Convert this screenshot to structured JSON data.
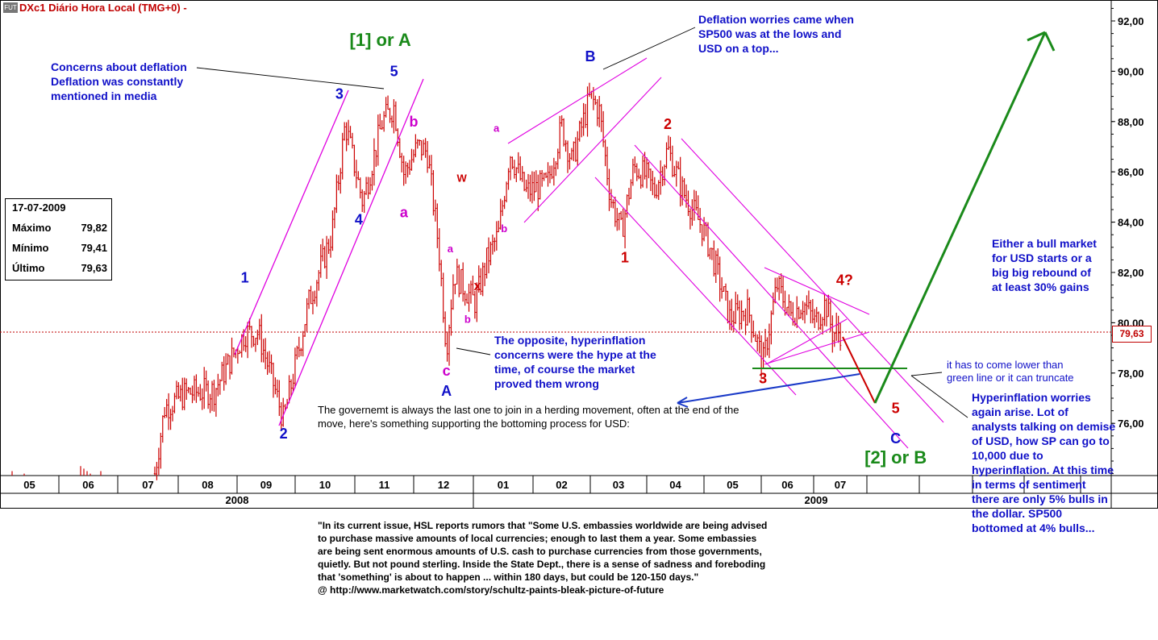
{
  "title": "DXc1  Diário  Hora Local (TMG+0)",
  "title_suffix": "-",
  "title_icon": "FUT",
  "info_box": {
    "date": "17-07-2009",
    "rows": [
      {
        "label": "Máximo",
        "value": "79,82"
      },
      {
        "label": "Mínimo",
        "value": "79,41"
      },
      {
        "label": "Último",
        "value": "79,63"
      }
    ]
  },
  "last_price_label": "79,63",
  "colors": {
    "candle": "#cc0000",
    "channel": "#e000e0",
    "wave_blue": "#1010c8",
    "wave_red": "#cc0000",
    "wave_magenta": "#cc00cc",
    "wave_green": "#1a8a1a",
    "green_arrow": "#1a8a1a",
    "blue_arrow": "#1a3ac8",
    "last_price_line": "#c00000"
  },
  "chart_data": {
    "type": "candlestick",
    "instrument": "DXc1",
    "y_axis": {
      "min": 74,
      "max": 93,
      "ticks": [
        "92,00",
        "90,00",
        "88,00",
        "86,00",
        "84,00",
        "82,00",
        "80,00",
        "78,00",
        "76,00"
      ],
      "position": "right"
    },
    "x_axis": {
      "month_ticks": [
        "05",
        "06",
        "07",
        "08",
        "09",
        "10",
        "11",
        "12",
        "01",
        "02",
        "03",
        "04",
        "05",
        "06",
        "07"
      ],
      "year_labels": [
        "2008",
        "2009"
      ]
    },
    "last_price": 79.63,
    "price_path": [
      {
        "t": "2008-07-20",
        "v": 74.0
      },
      {
        "t": "2008-07-25",
        "v": 76.6
      },
      {
        "t": "2008-08-05",
        "v": 77.2
      },
      {
        "t": "2008-08-20",
        "v": 77.3
      },
      {
        "t": "2008-09-05",
        "v": 79.6
      },
      {
        "t": "2008-09-12",
        "v": 79.6
      },
      {
        "t": "2008-09-20",
        "v": 77.5
      },
      {
        "t": "2008-09-25",
        "v": 76.1
      },
      {
        "t": "2008-10-08",
        "v": 80.8
      },
      {
        "t": "2008-10-20",
        "v": 83.5
      },
      {
        "t": "2008-10-27",
        "v": 87.9
      },
      {
        "t": "2008-11-05",
        "v": 84.8
      },
      {
        "t": "2008-11-15",
        "v": 88.0
      },
      {
        "t": "2008-11-21",
        "v": 88.6
      },
      {
        "t": "2008-11-26",
        "v": 85.9
      },
      {
        "t": "2008-12-03",
        "v": 87.0
      },
      {
        "t": "2008-12-08",
        "v": 86.8
      },
      {
        "t": "2008-12-14",
        "v": 83.0
      },
      {
        "t": "2008-12-18",
        "v": 79.0
      },
      {
        "t": "2008-12-22",
        "v": 82.0
      },
      {
        "t": "2008-12-27",
        "v": 81.4
      },
      {
        "t": "2009-01-02",
        "v": 80.8
      },
      {
        "t": "2009-01-08",
        "v": 82.5
      },
      {
        "t": "2009-01-14",
        "v": 83.5
      },
      {
        "t": "2009-01-20",
        "v": 86.8
      },
      {
        "t": "2009-01-28",
        "v": 85.2
      },
      {
        "t": "2009-02-08",
        "v": 85.5
      },
      {
        "t": "2009-02-15",
        "v": 87.8
      },
      {
        "t": "2009-02-20",
        "v": 86.4
      },
      {
        "t": "2009-03-01",
        "v": 89.0
      },
      {
        "t": "2009-03-06",
        "v": 88.4
      },
      {
        "t": "2009-03-12",
        "v": 85.0
      },
      {
        "t": "2009-03-18",
        "v": 83.6
      },
      {
        "t": "2009-03-25",
        "v": 86.2
      },
      {
        "t": "2009-04-01",
        "v": 85.8
      },
      {
        "t": "2009-04-05",
        "v": 85.2
      },
      {
        "t": "2009-04-12",
        "v": 86.9
      },
      {
        "t": "2009-04-20",
        "v": 85.2
      },
      {
        "t": "2009-04-30",
        "v": 83.8
      },
      {
        "t": "2009-05-05",
        "v": 82.8
      },
      {
        "t": "2009-05-15",
        "v": 80.2
      },
      {
        "t": "2009-05-25",
        "v": 80.5
      },
      {
        "t": "2009-06-02",
        "v": 78.4
      },
      {
        "t": "2009-06-10",
        "v": 81.5
      },
      {
        "t": "2009-06-18",
        "v": 80.3
      },
      {
        "t": "2009-06-25",
        "v": 80.8
      },
      {
        "t": "2009-07-02",
        "v": 80.0
      },
      {
        "t": "2009-07-08",
        "v": 80.8
      },
      {
        "t": "2009-07-12",
        "v": 79.6
      },
      {
        "t": "2009-07-17",
        "v": 79.63
      }
    ],
    "wave_labels": [
      {
        "text": "1",
        "t": "2008-09-05",
        "v": 81.6,
        "color": "wave_blue"
      },
      {
        "text": "2",
        "t": "2008-09-25",
        "v": 75.4,
        "color": "wave_blue"
      },
      {
        "text": "3",
        "t": "2008-10-24",
        "v": 88.9,
        "color": "wave_blue"
      },
      {
        "text": "4",
        "t": "2008-11-03",
        "v": 83.9,
        "color": "wave_blue"
      },
      {
        "text": "5",
        "t": "2008-11-21",
        "v": 89.8,
        "color": "wave_blue"
      },
      {
        "text": "b",
        "t": "2008-12-01",
        "v": 87.8,
        "color": "wave_magenta"
      },
      {
        "text": "a",
        "t": "2008-11-26",
        "v": 84.2,
        "color": "wave_magenta"
      },
      {
        "text": "W",
        "t": "2008-12-26",
        "v": 85.6,
        "color": "wave_red",
        "small": true
      },
      {
        "text": "a",
        "t": "2008-12-20",
        "v": 82.8,
        "color": "wave_magenta",
        "small": true
      },
      {
        "text": "X",
        "t": "2009-01-03",
        "v": 81.3,
        "color": "wave_red",
        "small": true
      },
      {
        "text": "b",
        "t": "2008-12-29",
        "v": 80.0,
        "color": "wave_magenta",
        "small": true
      },
      {
        "text": "c",
        "t": "2008-12-18",
        "v": 77.9,
        "color": "wave_magenta"
      },
      {
        "text": "A",
        "t": "2008-12-18",
        "v": 77.1,
        "color": "wave_blue"
      },
      {
        "text": "a",
        "t": "2009-01-13",
        "v": 87.6,
        "color": "wave_magenta",
        "small": true
      },
      {
        "text": "b",
        "t": "2009-01-17",
        "v": 83.6,
        "color": "wave_magenta",
        "small": true
      },
      {
        "text": "B",
        "t": "2009-03-01",
        "v": 90.4,
        "color": "wave_blue"
      },
      {
        "text": "1",
        "t": "2009-03-20",
        "v": 82.4,
        "color": "wave_red"
      },
      {
        "text": "2",
        "t": "2009-04-12",
        "v": 87.7,
        "color": "wave_red"
      },
      {
        "text": "3",
        "t": "2009-06-02",
        "v": 77.6,
        "color": "wave_red"
      },
      {
        "text": "4?",
        "t": "2009-07-19",
        "v": 81.5,
        "color": "wave_red"
      },
      {
        "text": "5",
        "t": "2009-08-18",
        "v": 76.4,
        "color": "wave_red"
      },
      {
        "text": "C",
        "t": "2009-08-18",
        "v": 75.2,
        "color": "wave_blue"
      },
      {
        "text": "[1] or A",
        "t": "2008-11-14",
        "v": 91.0,
        "color": "wave_green",
        "big": true
      },
      {
        "text": "[2] or B",
        "t": "2009-08-18",
        "v": 74.4,
        "color": "wave_green",
        "big": true
      }
    ]
  },
  "annotations": {
    "deflation_concerns": [
      "Concerns about deflation",
      "Deflation was constantly",
      "mentioned in media"
    ],
    "deflation_worries": [
      "Deflation worries came when",
      "SP500 was at the lows and",
      "USD on a top..."
    ],
    "hyperinflation_opposite": [
      "The opposite, hyperinflation",
      "concerns were the hype at the",
      "time, of course the market",
      "proved them wrong"
    ],
    "government": [
      "The governemt is always the last one to join in a herding movement, often at the end of the",
      "move, here's something supporting the bottoming process for USD:"
    ],
    "bull_market": [
      "Either a bull market",
      "for USD starts or a",
      "big big rebound of",
      "at least 30% gains"
    ],
    "green_line": [
      "it has to come lower than",
      "green line or it can truncate"
    ],
    "hyperinflation_again": [
      "Hyperinflation worries",
      "again arise. Lot of",
      "analysts talking on demise",
      "of USD, how SP can go to",
      "10,000 due to",
      "hyperinflation. At this time",
      "in terms of sentiment",
      "there are only 5% bulls in",
      "the dollar. SP500",
      "bottomed at 4% bulls..."
    ],
    "quote": [
      "\"In its current issue, HSL reports rumors that \"Some U.S. embassies worldwide are being advised",
      "to purchase massive amounts of local currencies; enough to last them a year. Some embassies",
      "are being sent enormous amounts of U.S. cash to purchase currencies from those governments,",
      "quietly. But not pound sterling. Inside the State Dept., there is a sense of sadness and foreboding",
      "that 'something' is about to happen ... within 180 days, but could be 120-150 days.\"",
      "@ http://www.marketwatch.com/story/schultz-paints-bleak-picture-of-future"
    ]
  }
}
